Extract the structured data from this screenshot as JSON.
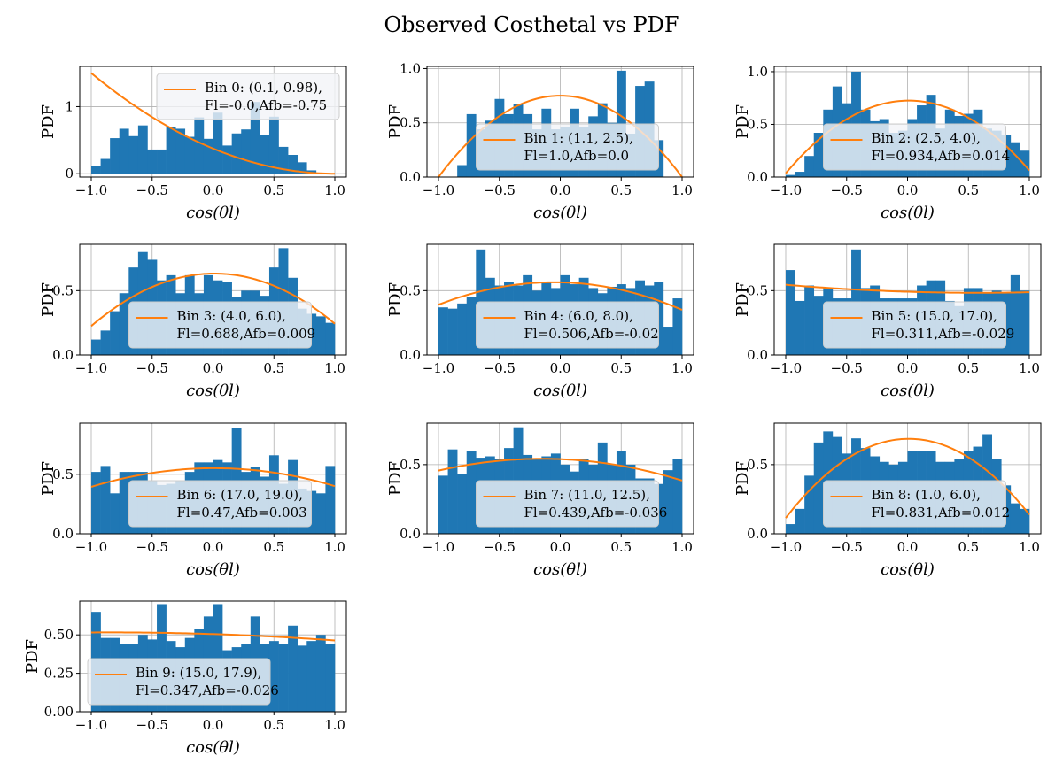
{
  "figure_title": "Observed Costhetal vs PDF",
  "colors": {
    "bars": "#1f77b4",
    "fit": "#ff7f0e",
    "grid": "#b0b0b0",
    "legend_bg": "#f2f4f7"
  },
  "chart_data": [
    {
      "type": "bar",
      "xlabel": "cos(θl)",
      "ylabel": "PDF",
      "xlim": [
        -1.0,
        1.0
      ],
      "ylim": [
        -0.05,
        1.6
      ],
      "xticks": [
        "−1.0",
        "−0.5",
        "0.0",
        "0.5",
        "1.0"
      ],
      "yticks": [
        "0",
        "1"
      ],
      "ytick_values": [
        0,
        1
      ],
      "grid": true,
      "legend_position": "upper right",
      "legend": [
        "Bin 0: (0.1, 0.98),",
        "Fl=-0.0,Afb=-0.75"
      ],
      "fit": {
        "Fl": -0.0,
        "Afb": -0.75
      },
      "bin_edges": [
        -1.0,
        1.0
      ],
      "bin_count": 26,
      "values": [
        0.12,
        0.22,
        0.53,
        0.67,
        0.56,
        0.72,
        0.36,
        0.36,
        0.7,
        0.67,
        0.55,
        0.84,
        0.52,
        0.91,
        0.42,
        0.6,
        0.66,
        1.07,
        0.58,
        0.85,
        0.4,
        0.28,
        0.17,
        0.05,
        0.0,
        0.0
      ]
    },
    {
      "type": "bar",
      "xlabel": "cos(θl)",
      "ylabel": "PDF",
      "xlim": [
        -1.0,
        1.0
      ],
      "ylim": [
        0.0,
        1.02
      ],
      "xticks": [
        "−1.0",
        "−0.5",
        "0.0",
        "0.5",
        "1.0"
      ],
      "yticks": [
        "0.0",
        "0.5",
        "1.0"
      ],
      "ytick_values": [
        0,
        0.5,
        1.0
      ],
      "grid": true,
      "legend_position": "lower center",
      "legend": [
        "Bin 1: (1.1, 2.5),",
        "Fl=1.0,Afb=0.0"
      ],
      "fit": {
        "Fl": 1.0,
        "Afb": 0.0
      },
      "bin_edges": [
        -1.0,
        1.0
      ],
      "bin_count": 26,
      "values": [
        0,
        0,
        0.11,
        0.58,
        0.44,
        0.52,
        0.72,
        0.58,
        0.67,
        0.58,
        0.44,
        0.63,
        0.44,
        0.46,
        0.63,
        0.46,
        0.56,
        0.68,
        0.5,
        0.98,
        0.4,
        0.84,
        0.88,
        0.34,
        0,
        0
      ]
    },
    {
      "type": "bar",
      "xlabel": "cos(θl)",
      "ylabel": "PDF",
      "xlim": [
        -1.0,
        1.0
      ],
      "ylim": [
        0.0,
        1.05
      ],
      "xticks": [
        "−1.0",
        "−0.5",
        "0.0",
        "0.5",
        "1.0"
      ],
      "yticks": [
        "0.0",
        "0.5",
        "1.0"
      ],
      "ytick_values": [
        0,
        0.5,
        1.0
      ],
      "grid": true,
      "legend_position": "lower center",
      "legend": [
        "Bin 2: (2.5, 4.0),",
        "Fl=0.934,Afb=0.014"
      ],
      "fit": {
        "Fl": 0.934,
        "Afb": 0.014
      },
      "bin_edges": [
        -1.0,
        1.0
      ],
      "bin_count": 26,
      "values": [
        0.02,
        0.05,
        0.2,
        0.42,
        0.64,
        0.86,
        0.7,
        1.0,
        0.64,
        0.53,
        0.55,
        0.42,
        0.44,
        0.55,
        0.68,
        0.78,
        0.46,
        0.64,
        0.58,
        0.6,
        0.64,
        0.46,
        0.44,
        0.4,
        0.33,
        0.25
      ]
    },
    {
      "type": "bar",
      "xlabel": "cos(θl)",
      "ylabel": "PDF",
      "xlim": [
        -1.0,
        1.0
      ],
      "ylim": [
        0.0,
        0.86
      ],
      "xticks": [
        "−1.0",
        "−0.5",
        "0.0",
        "0.5",
        "1.0"
      ],
      "yticks": [
        "0.0",
        "0.5"
      ],
      "ytick_values": [
        0,
        0.5
      ],
      "grid": true,
      "legend_position": "lower center",
      "legend": [
        "Bin 3: (4.0, 6.0),",
        "Fl=0.688,Afb=0.009"
      ],
      "fit": {
        "Fl": 0.688,
        "Afb": 0.009
      },
      "bin_edges": [
        -1.0,
        1.0
      ],
      "bin_count": 26,
      "values": [
        0.12,
        0.19,
        0.34,
        0.48,
        0.68,
        0.8,
        0.74,
        0.58,
        0.62,
        0.48,
        0.62,
        0.48,
        0.62,
        0.58,
        0.57,
        0.45,
        0.5,
        0.5,
        0.46,
        0.68,
        0.83,
        0.6,
        0.36,
        0.32,
        0.3,
        0.25
      ]
    },
    {
      "type": "bar",
      "xlabel": "cos(θl)",
      "ylabel": "PDF",
      "xlim": [
        -1.0,
        1.0
      ],
      "ylim": [
        0.0,
        0.86
      ],
      "xticks": [
        "−1.0",
        "−0.5",
        "0.0",
        "0.5",
        "1.0"
      ],
      "yticks": [
        "0.0",
        "0.5"
      ],
      "ytick_values": [
        0,
        0.5
      ],
      "grid": true,
      "legend_position": "lower center",
      "legend": [
        "Bin 4: (6.0, 8.0),",
        "Fl=0.506,Afb=-0.02"
      ],
      "fit": {
        "Fl": 0.506,
        "Afb": -0.02
      },
      "bin_edges": [
        -1.0,
        1.0
      ],
      "bin_count": 26,
      "values": [
        0.37,
        0.36,
        0.4,
        0.45,
        0.82,
        0.6,
        0.54,
        0.57,
        0.54,
        0.62,
        0.5,
        0.57,
        0.52,
        0.62,
        0.55,
        0.6,
        0.52,
        0.48,
        0.53,
        0.55,
        0.52,
        0.58,
        0.54,
        0.57,
        0.22,
        0.44
      ]
    },
    {
      "type": "bar",
      "xlabel": "cos(θl)",
      "ylabel": "PDF",
      "xlim": [
        -1.0,
        1.0
      ],
      "ylim": [
        0.0,
        0.86
      ],
      "xticks": [
        "−1.0",
        "−0.5",
        "0.0",
        "0.5",
        "1.0"
      ],
      "yticks": [
        "0.0",
        "0.5"
      ],
      "ytick_values": [
        0,
        0.5
      ],
      "grid": true,
      "legend_position": "lower center",
      "legend": [
        "Bin 5: (15.0, 17.0),",
        "Fl=0.311,Afb=-0.029"
      ],
      "fit": {
        "Fl": 0.311,
        "Afb": -0.029
      },
      "bin_edges": [
        -1.0,
        1.0
      ],
      "bin_count": 26,
      "values": [
        0.66,
        0.42,
        0.54,
        0.46,
        0.52,
        0.44,
        0.44,
        0.82,
        0.52,
        0.54,
        0.44,
        0.44,
        0.44,
        0.44,
        0.54,
        0.58,
        0.58,
        0.42,
        0.38,
        0.52,
        0.52,
        0.48,
        0.5,
        0.48,
        0.62,
        0.5
      ]
    },
    {
      "type": "bar",
      "xlabel": "cos(θl)",
      "ylabel": "PDF",
      "xlim": [
        -1.0,
        1.0
      ],
      "ylim": [
        0.0,
        0.93
      ],
      "xticks": [
        "−1.0",
        "−0.5",
        "0.0",
        "0.5",
        "1.0"
      ],
      "yticks": [
        "0.0",
        "0.5"
      ],
      "ytick_values": [
        0,
        0.5
      ],
      "grid": true,
      "legend_position": "lower center",
      "legend": [
        "Bin 6: (17.0, 19.0),",
        "Fl=0.47,Afb=0.003"
      ],
      "fit": {
        "Fl": 0.47,
        "Afb": 0.003
      },
      "bin_edges": [
        -1.0,
        1.0
      ],
      "bin_count": 26,
      "values": [
        0.52,
        0.57,
        0.34,
        0.52,
        0.52,
        0.52,
        0.45,
        0.41,
        0.42,
        0.45,
        0.52,
        0.6,
        0.6,
        0.62,
        0.6,
        0.89,
        0.52,
        0.56,
        0.48,
        0.66,
        0.42,
        0.62,
        0.38,
        0.36,
        0.34,
        0.57
      ]
    },
    {
      "type": "bar",
      "xlabel": "cos(θl)",
      "ylabel": "PDF",
      "xlim": [
        -1.0,
        1.0
      ],
      "ylim": [
        0.0,
        0.8
      ],
      "xticks": [
        "−1.0",
        "−0.5",
        "0.0",
        "0.5",
        "1.0"
      ],
      "yticks": [
        "0.0",
        "0.5"
      ],
      "ytick_values": [
        0,
        0.5
      ],
      "grid": true,
      "legend_position": "lower center",
      "legend": [
        "Bin 7: (11.0, 12.5),",
        "Fl=0.439,Afb=-0.036"
      ],
      "fit": {
        "Fl": 0.439,
        "Afb": -0.036
      },
      "bin_edges": [
        -1.0,
        1.0
      ],
      "bin_count": 26,
      "values": [
        0.42,
        0.61,
        0.43,
        0.6,
        0.55,
        0.56,
        0.54,
        0.62,
        0.77,
        0.57,
        0.54,
        0.56,
        0.58,
        0.5,
        0.45,
        0.54,
        0.5,
        0.66,
        0.5,
        0.6,
        0.5,
        0.4,
        0.4,
        0.36,
        0.46,
        0.54
      ]
    },
    {
      "type": "bar",
      "xlabel": "cos(θl)",
      "ylabel": "PDF",
      "xlim": [
        -1.0,
        1.0
      ],
      "ylim": [
        0.0,
        0.8
      ],
      "xticks": [
        "−1.0",
        "−0.5",
        "0.0",
        "0.5",
        "1.0"
      ],
      "yticks": [
        "0.0",
        "0.5"
      ],
      "ytick_values": [
        0,
        0.5
      ],
      "grid": true,
      "legend_position": "lower center",
      "legend": [
        "Bin 8: (1.0, 6.0),",
        "Fl=0.831,Afb=0.012"
      ],
      "fit": {
        "Fl": 0.831,
        "Afb": 0.012
      },
      "bin_edges": [
        -1.0,
        1.0
      ],
      "bin_count": 26,
      "values": [
        0.07,
        0.18,
        0.42,
        0.66,
        0.74,
        0.7,
        0.58,
        0.69,
        0.62,
        0.56,
        0.52,
        0.5,
        0.52,
        0.6,
        0.6,
        0.6,
        0.52,
        0.52,
        0.54,
        0.6,
        0.63,
        0.72,
        0.54,
        0.35,
        0.22,
        0.18
      ]
    },
    {
      "type": "bar",
      "xlabel": "cos(θl)",
      "ylabel": "PDF",
      "xlim": [
        -1.0,
        1.0
      ],
      "ylim": [
        0.0,
        0.72
      ],
      "xticks": [
        "−1.0",
        "−0.5",
        "0.0",
        "0.5",
        "1.0"
      ],
      "yticks": [
        "0.00",
        "0.25",
        "0.50"
      ],
      "ytick_values": [
        0,
        0.25,
        0.5
      ],
      "grid": true,
      "legend_position": "lower left",
      "legend": [
        "Bin 9: (15.0, 17.9),",
        "Fl=0.347,Afb=-0.026"
      ],
      "fit": {
        "Fl": 0.347,
        "Afb": -0.026
      },
      "bin_edges": [
        -1.0,
        1.0
      ],
      "bin_count": 26,
      "values": [
        0.65,
        0.48,
        0.48,
        0.44,
        0.44,
        0.5,
        0.47,
        0.7,
        0.46,
        0.42,
        0.48,
        0.54,
        0.62,
        0.7,
        0.4,
        0.42,
        0.44,
        0.62,
        0.44,
        0.46,
        0.44,
        0.56,
        0.43,
        0.46,
        0.5,
        0.44
      ]
    }
  ]
}
